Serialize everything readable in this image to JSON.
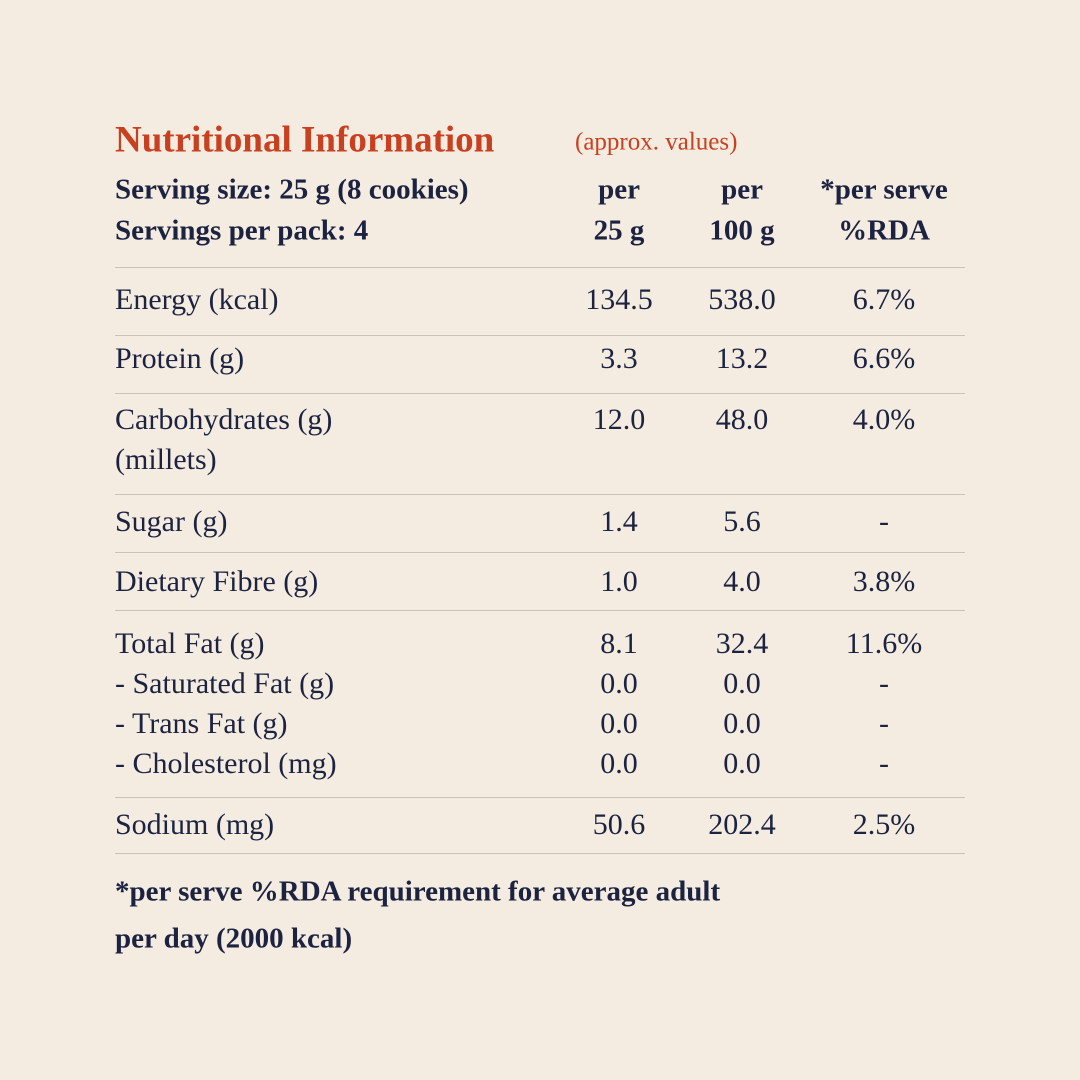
{
  "header": {
    "title": "Nutritional Information",
    "subtitle": "(approx. values)",
    "serving": [
      "Serving size: 25 g (8 cookies)",
      "Servings per pack: 4"
    ],
    "columns": [
      [
        "per",
        "25 g"
      ],
      [
        "per",
        "100 g"
      ],
      [
        "*per serve",
        "%RDA"
      ]
    ]
  },
  "table": {
    "groups": [
      [
        {
          "label": "Energy (kcal)",
          "values": [
            "134.5",
            "538.0",
            "6.7%"
          ]
        }
      ],
      [
        {
          "label": "Protein (g)",
          "values": [
            "3.3",
            "13.2",
            "6.6%"
          ]
        }
      ],
      [
        {
          "label": "Carbohydrates (g)",
          "values": [
            "12.0",
            "48.0",
            "4.0%"
          ]
        },
        {
          "label": "(millets)"
        }
      ],
      [
        {
          "label": "Sugar (g)",
          "values": [
            "1.4",
            "5.6",
            "-"
          ]
        }
      ],
      [
        {
          "label": "Dietary Fibre (g)",
          "values": [
            "1.0",
            "4.0",
            "3.8%"
          ]
        }
      ],
      [
        {
          "label": "Total Fat (g)",
          "values": [
            "8.1",
            "32.4",
            "11.6%"
          ]
        },
        {
          "label": "- Saturated Fat (g)",
          "values": [
            "0.0",
            "0.0",
            "-"
          ]
        },
        {
          "label": "- Trans Fat (g)",
          "values": [
            "0.0",
            "0.0",
            "-"
          ]
        },
        {
          "label": "- Cholesterol (mg)",
          "values": [
            "0.0",
            "0.0",
            "-"
          ]
        }
      ],
      [
        {
          "label": "Sodium (mg)",
          "values": [
            "50.6",
            "202.4",
            "2.5%"
          ]
        }
      ]
    ]
  },
  "footnote": [
    "*per serve %RDA requirement for average adult",
    "per day (2000 kcal)"
  ]
}
